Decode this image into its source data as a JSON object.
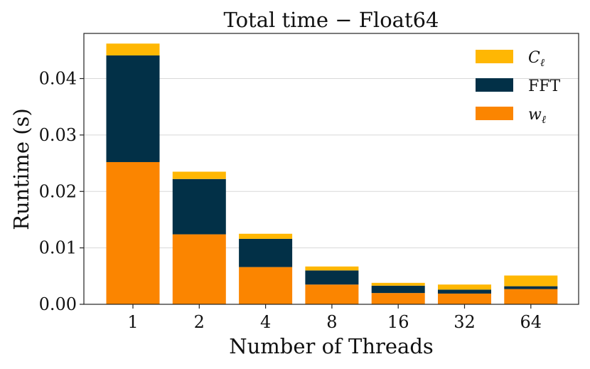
{
  "chart_data": {
    "type": "bar",
    "stacked": true,
    "title": "Total time − Float64",
    "xlabel": "Number of Threads",
    "ylabel": "Runtime (s)",
    "categories": [
      "1",
      "2",
      "4",
      "8",
      "16",
      "32",
      "64"
    ],
    "ylim": [
      0,
      0.048
    ],
    "yticks": [
      0,
      0.01,
      0.02,
      0.03,
      0.04
    ],
    "ytick_labels": [
      "0.00",
      "0.01",
      "0.02",
      "0.03",
      "0.04"
    ],
    "grid": "y",
    "legend_position": "top-right",
    "series": [
      {
        "name": "w",
        "subscript": "ℓ",
        "color": "#fb8500",
        "values": [
          0.0252,
          0.0124,
          0.0066,
          0.0035,
          0.002,
          0.0019,
          0.0027
        ]
      },
      {
        "name": "FFT",
        "subscript": "",
        "color": "#023047",
        "values": [
          0.0189,
          0.0098,
          0.005,
          0.0025,
          0.0013,
          0.0007,
          0.0005
        ]
      },
      {
        "name": "C",
        "subscript": "ℓ",
        "color": "#ffb703",
        "values": [
          0.0021,
          0.0013,
          0.0009,
          0.0007,
          0.0005,
          0.0009,
          0.0019
        ]
      }
    ],
    "legend_order": [
      2,
      1,
      0
    ]
  }
}
